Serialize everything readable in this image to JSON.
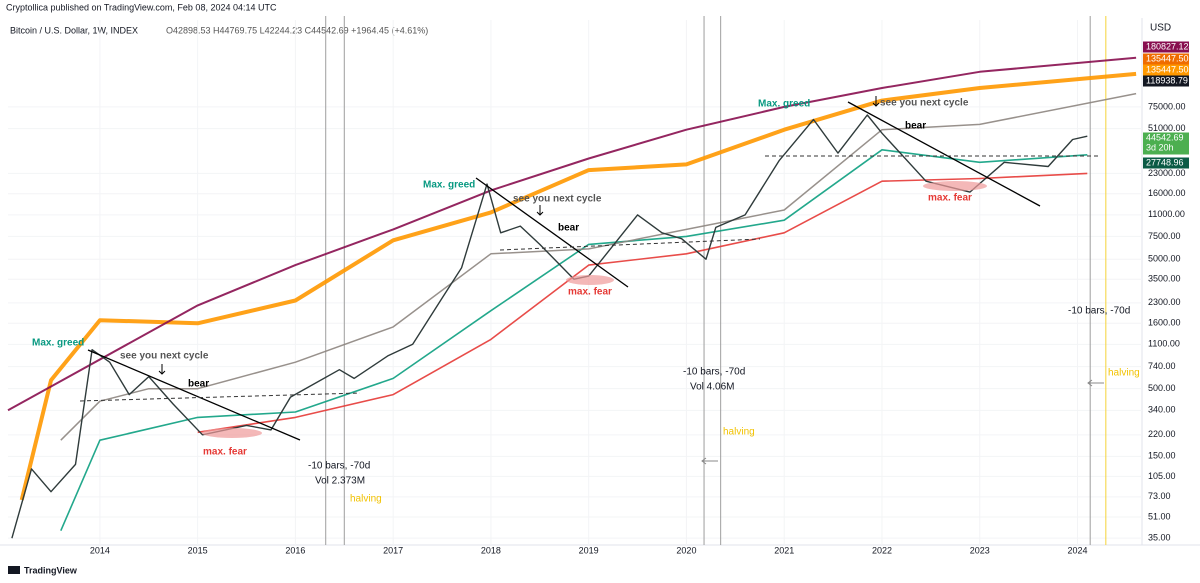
{
  "header": {
    "publisher": "Cryptollica published on TradingView.com, Feb 08, 2024 04:14 UTC",
    "symbol": "Bitcoin / U.S. Dollar, 1W, INDEX",
    "ohlc": "O42898.53 H44769.75 L42244.23 C44542.69 +1964.45 (+4.61%)"
  },
  "footer": {
    "brand": "TradingView"
  },
  "chart_data": {
    "type": "line",
    "log_scale": true,
    "currency": "USD",
    "xlim": [
      2013.06,
      2024.66
    ],
    "xticks": [
      2014,
      2015,
      2016,
      2017,
      2018,
      2019,
      2020,
      2021,
      2022,
      2023,
      2024
    ],
    "ylim": [
      31,
      352000
    ],
    "yticks": [
      {
        "value": 35,
        "label": "35.00"
      },
      {
        "value": 51,
        "label": "51.00"
      },
      {
        "value": 73,
        "label": "73.00"
      },
      {
        "value": 105,
        "label": "105.00"
      },
      {
        "value": 150,
        "label": "150.00"
      },
      {
        "value": 220,
        "label": "220.00"
      },
      {
        "value": 340,
        "label": "340.00"
      },
      {
        "value": 500,
        "label": "500.00"
      },
      {
        "value": 740,
        "label": "740.00"
      },
      {
        "value": 1100,
        "label": "1100.00"
      },
      {
        "value": 1600,
        "label": "1600.00"
      },
      {
        "value": 2300,
        "label": "2300.00"
      },
      {
        "value": 3500,
        "label": "3500.00"
      },
      {
        "value": 5000,
        "label": "5000.00"
      },
      {
        "value": 7500,
        "label": "7500.00"
      },
      {
        "value": 11000,
        "label": "11000.00"
      },
      {
        "value": 16000,
        "label": "16000.00"
      },
      {
        "value": 23000,
        "label": "23000.00"
      },
      {
        "value": 51000,
        "label": "51000.00"
      },
      {
        "value": 75000,
        "label": "75000.00"
      }
    ],
    "series": [
      {
        "color": "#2f3b3b",
        "width": 1.4,
        "x": [
          2013.1,
          2013.3,
          2013.5,
          2013.75,
          2013.92,
          2014.1,
          2014.3,
          2014.5,
          2014.75,
          2015.05,
          2015.5,
          2015.75,
          2015.95,
          2016.45,
          2016.6,
          2016.95,
          2017.2,
          2017.5,
          2017.7,
          2017.96,
          2018.1,
          2018.3,
          2018.5,
          2018.85,
          2019.0,
          2019.5,
          2019.75,
          2019.95,
          2020.2,
          2020.3,
          2020.6,
          2020.95,
          2021.3,
          2021.55,
          2021.85,
          2022.0,
          2022.45,
          2022.9,
          2023.25,
          2023.7,
          2023.95,
          2024.1
        ],
        "values": [
          35,
          120,
          80,
          130,
          1000,
          800,
          450,
          620,
          380,
          220,
          260,
          240,
          430,
          700,
          600,
          900,
          1100,
          2500,
          4300,
          19000,
          8000,
          9000,
          6500,
          3500,
          3700,
          11000,
          8000,
          7200,
          5000,
          8800,
          11000,
          29000,
          60000,
          33000,
          65000,
          47000,
          20000,
          16500,
          28000,
          26000,
          42000,
          44542.69
        ]
      },
      {
        "color": "#880e4f",
        "width": 2,
        "x": [
          2013.06,
          2015,
          2016,
          2017,
          2018,
          2019,
          2020,
          2021,
          2022,
          2023,
          2024.6
        ],
        "values": [
          340,
          2200,
          4500,
          8500,
          17000,
          30000,
          50000,
          75000,
          105000,
          140000,
          180000
        ]
      },
      {
        "color": "#ff9800",
        "width": 4,
        "x": [
          2013.2,
          2013.5,
          2014,
          2015,
          2016,
          2017,
          2018,
          2019,
          2020,
          2021,
          2022,
          2023,
          2024.6
        ],
        "values": [
          69,
          580,
          1690,
          1600,
          2400,
          7000,
          11500,
          24400,
          27000,
          50000,
          84000,
          105000,
          135000
        ]
      },
      {
        "color": "#8d8580",
        "width": 1.5,
        "x": [
          2013.6,
          2014,
          2014.5,
          2015,
          2016,
          2017,
          2018,
          2019,
          2020,
          2021,
          2022,
          2023,
          2024.6
        ],
        "values": [
          200,
          400,
          500,
          500,
          800,
          1500,
          5500,
          6000,
          8500,
          12000,
          50000,
          55000,
          95000
        ]
      },
      {
        "color": "#0b9e7f",
        "width": 1.6,
        "x": [
          2013.6,
          2014,
          2015,
          2016,
          2017,
          2018,
          2019,
          2020,
          2021,
          2022,
          2023,
          2024.1
        ],
        "values": [
          40,
          200,
          300,
          330,
          600,
          2000,
          6500,
          7500,
          10000,
          35000,
          28000,
          32000
        ]
      },
      {
        "color": "#e53935",
        "width": 1.6,
        "x": [
          2015,
          2016,
          2017,
          2018,
          2019,
          2020,
          2021,
          2022,
          2023,
          2024.1
        ],
        "values": [
          230,
          300,
          450,
          1200,
          4500,
          5500,
          8000,
          20000,
          21000,
          23000
        ]
      }
    ],
    "vlines": [
      {
        "x": 2016.31,
        "color": "#9e9e9e"
      },
      {
        "x": 2016.5,
        "color": "#9e9e9e"
      },
      {
        "x": 2020.18,
        "color": "#9e9e9e"
      },
      {
        "x": 2020.35,
        "color": "#9e9e9e"
      },
      {
        "x": 2024.13,
        "color": "#9e9e9e"
      },
      {
        "x": 2024.29,
        "color": "#f5d33a"
      }
    ],
    "price_labels": [
      {
        "label": "180827.124",
        "color": "#880e4f"
      },
      {
        "label": "135447.50",
        "color": "#ef6c00"
      },
      {
        "label": "135447.50",
        "color": "#ff9800"
      },
      {
        "label": "118938.79",
        "color": "#131722"
      },
      {
        "label": "44542.69",
        "color": "#4caf50",
        "note": "3d 20h"
      },
      {
        "label": "27748.96",
        "color": "#0b5b45"
      }
    ],
    "annotations": [
      "Max. greed",
      "see you next cycle",
      "bear",
      "max. fear",
      "-10 bars, -70d",
      "Vol 2.373M",
      "halving",
      "Max. greed",
      "see you next cycle",
      "bear",
      "max. fear",
      "-10 bars, -70d",
      "Vol 4.06M",
      "halving",
      "Max. greed",
      "see you next cycle",
      "bear",
      "max. fear",
      "-10 bars, -70d",
      "halving"
    ]
  }
}
